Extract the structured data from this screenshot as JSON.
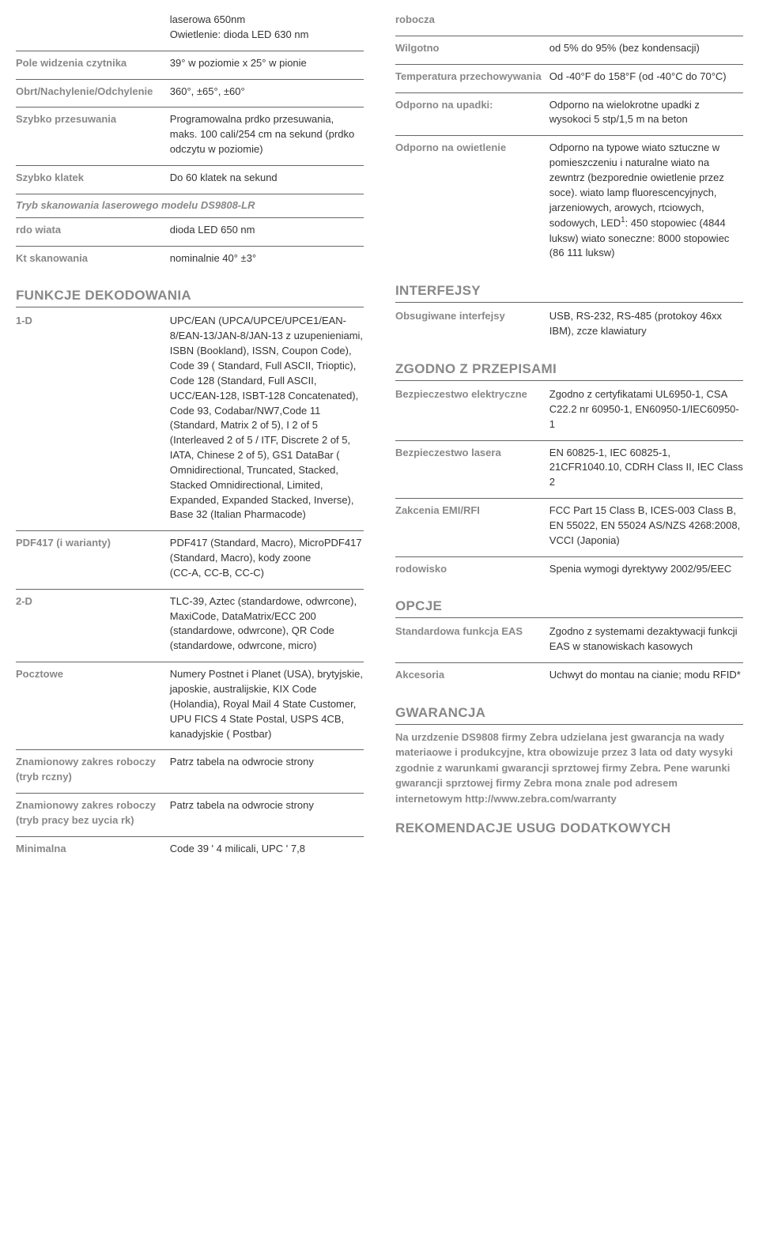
{
  "left": {
    "partialTop": {
      "laser": "laserowa 650nm",
      "oswiet": "Owietlenie: dioda LED 630 nm"
    },
    "rows1": [
      {
        "label": "Pole widzenia czytnika",
        "value": "39° w poziomie x 25° w pionie"
      },
      {
        "label": "Obrt/Nachylenie/Odchylenie",
        "value": "360°, ±65°, ±60°"
      },
      {
        "label": "Szybko przesuwania",
        "value": "Programowalna prdko przesuwania, maks. 100 cali/254 cm na sekund (prdko odczytu w poziomie)"
      },
      {
        "label": "Szybko klatek",
        "value": "Do 60 klatek na sekund"
      }
    ],
    "trybLr": "Tryb skanowania laserowego modelu DS9808-LR",
    "rows2": [
      {
        "label": "rdo wiata",
        "value": "dioda LED 650 nm"
      },
      {
        "label": "Kt skanowania",
        "value": "nominalnie 40° ±3°"
      }
    ],
    "funkcjeTitle": "FUNKCJE DEKODOWANIA",
    "decode": [
      {
        "label": "1-D",
        "value": "UPC/EAN (UPCA/UPCE/UPCE1/EAN-8/EAN-13/JAN-8/JAN-13 z uzupenieniami, ISBN (Bookland), ISSN, Coupon Code), Code 39 ( Standard, Full ASCII, Trioptic), Code 128 (Standard, Full ASCII, UCC/EAN-128, ISBT-128 Concatenated), Code 93, Codabar/NW7,Code 11 (Standard, Matrix 2 of 5), I 2 of 5 (Interleaved 2 of 5 / ITF, Discrete 2 of 5, IATA, Chinese 2 of 5), GS1 DataBar ( Omnidirectional, Truncated, Stacked, Stacked Omnidirectional, Limited, Expanded, Expanded Stacked, Inverse), Base 32 (Italian Pharmacode)"
      },
      {
        "label": "PDF417 (i warianty)",
        "value": "PDF417 (Standard, Macro), MicroPDF417 (Standard, Macro), kody zoone\n(CC-A, CC-B, CC-C)"
      },
      {
        "label": "2-D",
        "value": "TLC-39, Aztec (standardowe, odwrcone), MaxiCode, DataMatrix/ECC 200 (standardowe, odwrcone), QR Code (standardowe, odwrcone, micro)"
      },
      {
        "label": "Pocztowe",
        "value": "Numery Postnet i Planet (USA), brytyjskie, japoskie, australijskie, KIX Code (Holandia), Royal Mail 4 State Customer, UPU FICS 4 State Postal, USPS 4CB, kanadyjskie ( Postbar)"
      },
      {
        "label": "Znamionowy zakres roboczy (tryb rczny)",
        "value": "Patrz tabela na odwrocie strony"
      },
      {
        "label": "Znamionowy zakres roboczy (tryb pracy bez uycia rk)",
        "value": "Patrz tabela na odwrocie strony"
      }
    ],
    "minimalna": {
      "label": "Minimalna",
      "value": "Code 39 ' 4 milicali, UPC ' 7,8"
    }
  },
  "right": {
    "robocza": "robocza",
    "env": [
      {
        "label": "Wilgotno",
        "value": "od 5% do 95% (bez kondensacji)"
      },
      {
        "label": "Temperatura przechowywania",
        "value": "Od -40°F do 158°F (od -40°C do 70°C)"
      },
      {
        "label": "Odporno na upadki:",
        "value": "Odporno na wielokrotne upadki z wysokoci 5 stp/1,5 m na beton"
      }
    ],
    "owietLabel": "Odporno na owietlenie",
    "owietValue": "Odporno na typowe wiato sztuczne w pomieszczeniu i naturalne wiato na\nzewntrz (bezporednie owietlenie przez\nsoce). wiato lamp fluorescencyjnych, jarzeniowych, arowych, rtciowych, sodowych, LED",
    "owietValue2": ": 450 stopowiec (4844 luksw) wiato soneczne: 8000 stopowiec (86 111 luksw)",
    "interfejsyTitle": "INTERFEJSY",
    "interfejsy": [
      {
        "label": "Obsugiwane interfejsy",
        "value": "USB, RS-232, RS-485 (protokoy 46xx IBM), zcze klawiatury"
      }
    ],
    "zgodnoTitle": "ZGODNO Z PRZEPISAMI",
    "zgodno": [
      {
        "label": "Bezpieczestwo elektryczne",
        "value": "Zgodno z certyfikatami UL6950-1, CSA C22.2 nr 60950-1, EN60950-1/IEC60950-1"
      },
      {
        "label": "Bezpieczestwo lasera",
        "value": "EN 60825-1, IEC 60825-1, 21CFR1040.10, CDRH Class II, IEC Class 2"
      },
      {
        "label": "Zakcenia EMI/RFI",
        "value": "FCC Part 15 Class B, ICES-003 Class B, EN 55022, EN 55024 AS/NZS 4268:2008, VCCI (Japonia)"
      },
      {
        "label": "rodowisko",
        "value": "Spenia wymogi dyrektywy 2002/95/EEC"
      }
    ],
    "opcjeTitle": "OPCJE",
    "opcje": [
      {
        "label": "Standardowa funkcja EAS",
        "value": "Zgodno z systemami dezaktywacji funkcji\nEAS w stanowiskach kasowych"
      },
      {
        "label": "Akcesoria",
        "value": "Uchwyt do montau na cianie; modu RFID*"
      }
    ],
    "gwarancjaTitle": "GWARANCJA",
    "gwarancjaText": "Na urzdzenie DS9808 firmy Zebra udzielana jest gwarancja na wady materiaowe i produkcyjne, ktra obowizuje przez 3 lata od daty wysyki zgodnie z warunkami gwarancji sprztowej firmy Zebra. Pene warunki gwarancji sprztowej firmy Zebra mona znale pod adresem internetowym http://www.zebra.com/warranty",
    "rekomendacjeTitle": "REKOMENDACJE USUG DODATKOWYCH"
  }
}
